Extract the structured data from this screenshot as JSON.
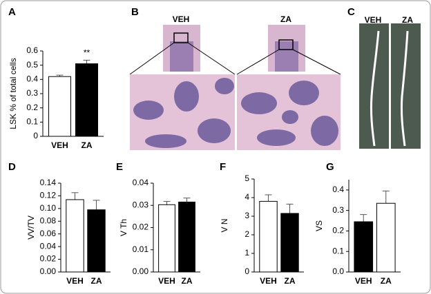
{
  "chart_data": [
    {
      "type": "bar",
      "panel_label": "A",
      "ylabel": "LSK % of total cells",
      "categories": [
        "VEH",
        "ZA"
      ],
      "values": [
        0.42,
        0.51
      ],
      "errors": [
        0.01,
        0.025
      ],
      "colors": [
        "#ffffff",
        "#000000"
      ],
      "annotation": "**",
      "ylim": [
        0,
        0.6
      ],
      "yticks": [
        0,
        0.1,
        0.2,
        0.3,
        0.4,
        0.5,
        0.6
      ]
    },
    {
      "type": "bar",
      "panel_label": "D",
      "ylabel": "VV/TV",
      "categories": [
        "VEH",
        "ZA"
      ],
      "values": [
        0.114,
        0.098
      ],
      "errors": [
        0.011,
        0.015
      ],
      "colors": [
        "#ffffff",
        "#000000"
      ],
      "ylim": [
        0,
        0.14
      ],
      "yticks": [
        {
          "value": 0,
          "label": "0.00"
        },
        0.02,
        0.04,
        0.06,
        0.08,
        {
          "value": 0.1,
          "label": "0.10"
        },
        0.12,
        0.14
      ]
    },
    {
      "type": "bar",
      "panel_label": "E",
      "ylabel": "V Th",
      "categories": [
        "VEH",
        "ZA"
      ],
      "values": [
        0.0303,
        0.0315
      ],
      "errors": [
        0.0015,
        0.0018
      ],
      "colors": [
        "#ffffff",
        "#000000"
      ],
      "ylim": [
        0,
        0.04
      ],
      "yticks": [
        {
          "value": 0,
          "label": "0.00"
        },
        0.01,
        0.02,
        0.03,
        0.04
      ]
    },
    {
      "type": "bar",
      "panel_label": "F",
      "ylabel": "V N",
      "categories": [
        "VEH",
        "ZA"
      ],
      "values": [
        3.8,
        3.15
      ],
      "errors": [
        0.35,
        0.5
      ],
      "colors": [
        "#ffffff",
        "#000000"
      ],
      "ylim": [
        0,
        5
      ],
      "yticks": [
        0,
        1,
        2,
        3,
        4,
        5
      ]
    },
    {
      "type": "bar",
      "panel_label": "G",
      "ylabel": "VS",
      "categories": [
        "VEH",
        "ZA"
      ],
      "values": [
        0.245,
        0.335
      ],
      "errors": [
        0.035,
        0.06
      ],
      "colors": [
        "#000000",
        "#ffffff"
      ],
      "ylim": [
        0,
        0.45
      ],
      "yticks": [
        {
          "value": 0,
          "label": "0.0"
        },
        0.1,
        0.2,
        0.3,
        0.4
      ]
    }
  ],
  "image_panels": [
    {
      "panel_label": "B",
      "labels": [
        "VEH",
        "ZA"
      ]
    },
    {
      "panel_label": "C",
      "labels": [
        "VEH",
        "ZA"
      ]
    }
  ]
}
